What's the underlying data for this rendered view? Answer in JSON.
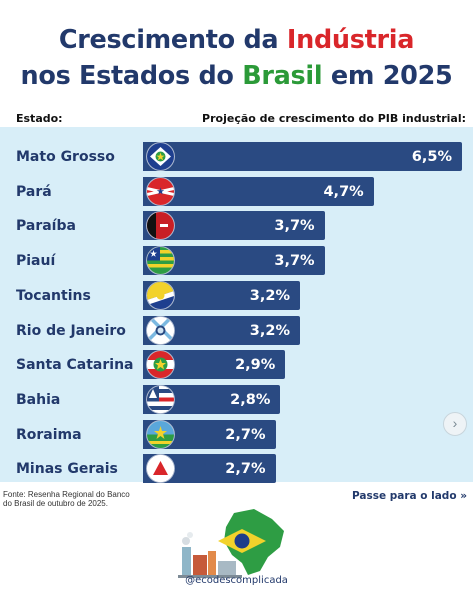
{
  "title": {
    "line1_prefix": "Crescimento da ",
    "line1_highlight": "Indústria",
    "line2_prefix": "nos Estados do ",
    "line2_highlight": "Brasil",
    "line2_suffix": " em 2025"
  },
  "headers": {
    "state": "Estado:",
    "growth": "Projeção de crescimento do PIB industrial:"
  },
  "chart_data": {
    "type": "bar",
    "orientation": "horizontal",
    "categories": [
      "Mato Grosso",
      "Pará",
      "Paraíba",
      "Piauí",
      "Tocantins",
      "Rio de Janeiro",
      "Santa Catarina",
      "Bahia",
      "Roraima",
      "Minas Gerais"
    ],
    "values": [
      6.5,
      4.7,
      3.7,
      3.7,
      3.2,
      3.2,
      2.9,
      2.8,
      2.7,
      2.7
    ],
    "value_labels": [
      "6,5%",
      "4,7%",
      "3,7%",
      "3,7%",
      "3,2%",
      "3,2%",
      "2,9%",
      "2,8%",
      "2,7%",
      "2,7%"
    ],
    "bar_color": "#2a4a82",
    "background_color": "#d8eef8",
    "xlim": [
      0,
      6.5
    ],
    "grid": false,
    "legend": "none"
  },
  "flags": [
    "mato-grosso-flag-icon",
    "para-flag-icon",
    "paraiba-flag-icon",
    "piaui-flag-icon",
    "tocantins-flag-icon",
    "rio-de-janeiro-flag-icon",
    "santa-catarina-flag-icon",
    "bahia-flag-icon",
    "roraima-flag-icon",
    "minas-gerais-flag-icon"
  ],
  "footer": {
    "source_line1": "Fonte: Resenha Regional do Banco",
    "source_line2": "do Brasil de outubro de 2025.",
    "swipe": "Passe para o lado",
    "swipe_icon": "double-chevron-right-icon",
    "handle": "@ecodescomplicada"
  },
  "colors": {
    "title_blue": "#22396b",
    "title_red": "#d9262a",
    "title_green": "#2b9a38"
  }
}
